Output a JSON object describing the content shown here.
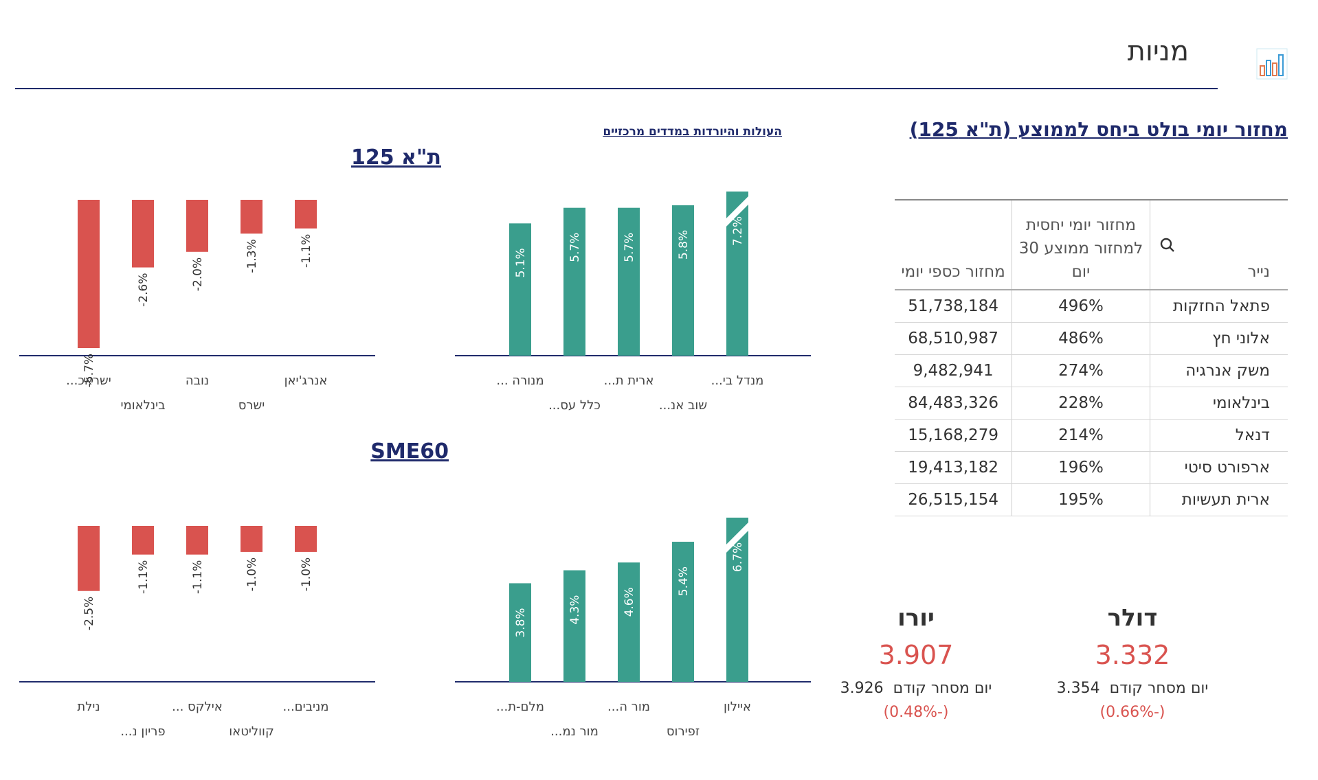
{
  "header": {
    "title": "מניות",
    "icon": "bar-chart-icon"
  },
  "turnover": {
    "title": "מחזור יומי בולט ביחס לממוצע (ת\"א 125)",
    "columns": {
      "security": "נייר",
      "ratio": "מחזור יומי יחסית למחזור ממוצע 30 יום",
      "value": "מחזור כספי יומי"
    },
    "rows": [
      {
        "name": "פתאל החזקות",
        "ratio": "496%",
        "value": "51,738,184"
      },
      {
        "name": "אלוני חץ",
        "ratio": "486%",
        "value": "68,510,987"
      },
      {
        "name": "משק אנרגיה",
        "ratio": "274%",
        "value": "9,482,941"
      },
      {
        "name": "בינלאומי",
        "ratio": "228%",
        "value": "84,483,326"
      },
      {
        "name": "דנאל",
        "ratio": "214%",
        "value": "15,168,279"
      },
      {
        "name": "ארפורט סיטי",
        "ratio": "196%",
        "value": "19,413,182"
      },
      {
        "name": "ארית תעשיות",
        "ratio": "195%",
        "value": "26,515,154"
      }
    ]
  },
  "movers_link": "העולות והיורדות במדדים מרכזיים",
  "indices": [
    {
      "title": "ת\"א 125",
      "gainers": [
        {
          "label": "מנדל בי...",
          "value": 7.2,
          "text": "7.2%"
        },
        {
          "label": "שוב אנ...",
          "value": 5.8,
          "text": "5.8%"
        },
        {
          "label": "ארית ת...",
          "value": 5.7,
          "text": "5.7%"
        },
        {
          "label": "כלל עס...",
          "value": 5.7,
          "text": "5.7%"
        },
        {
          "label": "מנורה ...",
          "value": 5.1,
          "text": "5.1%"
        }
      ],
      "losers": [
        {
          "label": "אנרג'יאן",
          "value": -1.1,
          "text": "-1.1%"
        },
        {
          "label": "ישרס",
          "value": -1.3,
          "text": "-1.3%"
        },
        {
          "label": "נובה",
          "value": -2.0,
          "text": "-2.0%"
        },
        {
          "label": "בינלאומי",
          "value": -2.6,
          "text": "-2.6%"
        },
        {
          "label": "ישראכ...",
          "value": -5.7,
          "text": "-5.7%"
        }
      ]
    },
    {
      "title": "SME60",
      "gainers": [
        {
          "label": "איילון",
          "value": 6.7,
          "text": "6.7%"
        },
        {
          "label": "זפירוס",
          "value": 5.4,
          "text": "5.4%"
        },
        {
          "label": "מור ה...",
          "value": 4.6,
          "text": "4.6%"
        },
        {
          "label": "מור נמ...",
          "value": 4.3,
          "text": "4.3%"
        },
        {
          "label": "מלם-ת...",
          "value": 3.8,
          "text": "3.8%"
        }
      ],
      "losers": [
        {
          "label": "מניבים...",
          "value": -1.0,
          "text": "-1.0%"
        },
        {
          "label": "קווליטאו",
          "value": -1.0,
          "text": "-1.0%"
        },
        {
          "label": "אילקס ...",
          "value": -1.1,
          "text": "-1.1%"
        },
        {
          "label": "פריון נ...",
          "value": -1.1,
          "text": "-1.1%"
        },
        {
          "label": "נילת",
          "value": -2.5,
          "text": "-2.5%"
        }
      ]
    }
  ],
  "currencies": [
    {
      "name": "דולר",
      "value": "3.332",
      "prev_label": "יום מסחר קודם",
      "prev": "3.354",
      "change": "(-0.66%)"
    },
    {
      "name": "יורו",
      "value": "3.907",
      "prev_label": "יום מסחר קודם",
      "prev": "3.926",
      "change": "(-0.48%)"
    }
  ],
  "colors": {
    "gain": "#3a9e8d",
    "loss": "#d9534f",
    "navy": "#1f2a6b"
  },
  "chart_data": [
    {
      "type": "bar",
      "title": "ת\"א 125",
      "categories": [
        "מנדל בי...",
        "שוב אנ...",
        "ארית ת...",
        "כלל עס...",
        "מנורה ..."
      ],
      "values": [
        7.2,
        5.8,
        5.7,
        5.7,
        5.1
      ]
    },
    {
      "type": "bar",
      "title": "ת\"א 125",
      "categories": [
        "אנרג'יאן",
        "ישרס",
        "נובה",
        "בינלאומי",
        "ישראכ..."
      ],
      "values": [
        -1.1,
        -1.3,
        -2.0,
        -2.6,
        -5.7
      ]
    },
    {
      "type": "bar",
      "title": "SME60",
      "categories": [
        "איילון",
        "זפירוס",
        "מור ה...",
        "מור נמ...",
        "מלם-ת..."
      ],
      "values": [
        6.7,
        5.4,
        4.6,
        4.3,
        3.8
      ]
    },
    {
      "type": "bar",
      "title": "SME60",
      "categories": [
        "מניבים...",
        "קווליטאו",
        "אילקס ...",
        "פריון נ...",
        "נילת"
      ],
      "values": [
        -1.0,
        -1.0,
        -1.1,
        -1.1,
        -2.5
      ]
    }
  ]
}
